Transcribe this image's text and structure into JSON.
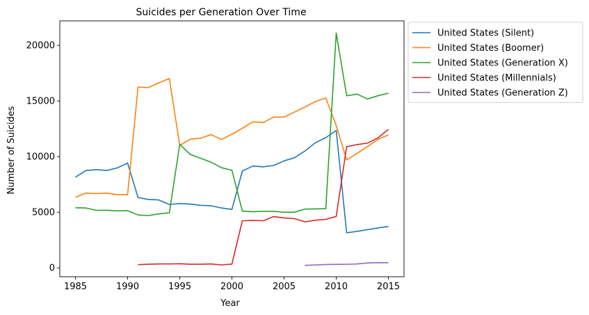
{
  "chart_data": {
    "type": "line",
    "title": "Suicides per Generation Over Time",
    "xlabel": "Year",
    "ylabel": "Number of Suicides",
    "xlim": [
      1983.5,
      2016.5
    ],
    "ylim": [
      -800,
      22200
    ],
    "xticks": [
      1985,
      1990,
      1995,
      2000,
      2005,
      2010,
      2015
    ],
    "yticks": [
      0,
      5000,
      10000,
      15000,
      20000
    ],
    "grid": false,
    "legend_position": "outside-top-right",
    "series": [
      {
        "name": "United States (Silent)",
        "color": "#1f77b4",
        "points": [
          [
            1985,
            8150
          ],
          [
            1986,
            8750
          ],
          [
            1987,
            8830
          ],
          [
            1988,
            8750
          ],
          [
            1989,
            8980
          ],
          [
            1990,
            9420
          ],
          [
            1991,
            6320
          ],
          [
            1992,
            6150
          ],
          [
            1993,
            6100
          ],
          [
            1994,
            5700
          ],
          [
            1995,
            5780
          ],
          [
            1996,
            5740
          ],
          [
            1997,
            5620
          ],
          [
            1998,
            5580
          ],
          [
            1999,
            5380
          ],
          [
            2000,
            5250
          ],
          [
            2001,
            8700
          ],
          [
            2002,
            9150
          ],
          [
            2003,
            9080
          ],
          [
            2004,
            9200
          ],
          [
            2005,
            9620
          ],
          [
            2006,
            9900
          ],
          [
            2007,
            10500
          ],
          [
            2008,
            11250
          ],
          [
            2009,
            11700
          ],
          [
            2010,
            12350
          ],
          [
            2011,
            3150
          ],
          [
            2012,
            3280
          ],
          [
            2013,
            3430
          ],
          [
            2014,
            3590
          ],
          [
            2015,
            3720
          ]
        ]
      },
      {
        "name": "United States (Boomer)",
        "color": "#ff7f0e",
        "points": [
          [
            1985,
            6350
          ],
          [
            1986,
            6720
          ],
          [
            1987,
            6680
          ],
          [
            1988,
            6720
          ],
          [
            1989,
            6580
          ],
          [
            1990,
            6580
          ],
          [
            1991,
            16250
          ],
          [
            1992,
            16200
          ],
          [
            1993,
            16630
          ],
          [
            1994,
            17020
          ],
          [
            1995,
            11000
          ],
          [
            1996,
            11560
          ],
          [
            1997,
            11650
          ],
          [
            1998,
            11980
          ],
          [
            1999,
            11530
          ],
          [
            2000,
            12010
          ],
          [
            2001,
            12550
          ],
          [
            2002,
            13120
          ],
          [
            2003,
            13060
          ],
          [
            2004,
            13550
          ],
          [
            2005,
            13550
          ],
          [
            2006,
            14000
          ],
          [
            2007,
            14450
          ],
          [
            2008,
            14950
          ],
          [
            2009,
            15270
          ],
          [
            2010,
            12780
          ],
          [
            2011,
            9700
          ],
          [
            2012,
            10300
          ],
          [
            2013,
            10900
          ],
          [
            2014,
            11550
          ],
          [
            2015,
            11950
          ]
        ]
      },
      {
        "name": "United States (Generation X)",
        "color": "#2ca02c",
        "points": [
          [
            1985,
            5400
          ],
          [
            1986,
            5380
          ],
          [
            1987,
            5170
          ],
          [
            1988,
            5180
          ],
          [
            1989,
            5120
          ],
          [
            1990,
            5150
          ],
          [
            1991,
            4750
          ],
          [
            1992,
            4700
          ],
          [
            1993,
            4850
          ],
          [
            1994,
            4950
          ],
          [
            1995,
            11100
          ],
          [
            1996,
            10200
          ],
          [
            1997,
            9850
          ],
          [
            1998,
            9500
          ],
          [
            1999,
            9000
          ],
          [
            2000,
            8770
          ],
          [
            2001,
            5100
          ],
          [
            2002,
            5050
          ],
          [
            2003,
            5080
          ],
          [
            2004,
            5080
          ],
          [
            2005,
            5000
          ],
          [
            2006,
            5000
          ],
          [
            2007,
            5280
          ],
          [
            2008,
            5300
          ],
          [
            2009,
            5320
          ],
          [
            2010,
            21100
          ],
          [
            2011,
            15470
          ],
          [
            2012,
            15620
          ],
          [
            2013,
            15180
          ],
          [
            2014,
            15470
          ],
          [
            2015,
            15700
          ]
        ]
      },
      {
        "name": "United States (Millennials)",
        "color": "#d62728",
        "points": [
          [
            1991,
            280
          ],
          [
            1992,
            330
          ],
          [
            1993,
            350
          ],
          [
            1994,
            350
          ],
          [
            1995,
            370
          ],
          [
            1996,
            330
          ],
          [
            1997,
            330
          ],
          [
            1998,
            350
          ],
          [
            1999,
            260
          ],
          [
            2000,
            340
          ],
          [
            2001,
            4230
          ],
          [
            2002,
            4270
          ],
          [
            2003,
            4230
          ],
          [
            2004,
            4610
          ],
          [
            2005,
            4490
          ],
          [
            2006,
            4420
          ],
          [
            2007,
            4140
          ],
          [
            2008,
            4280
          ],
          [
            2009,
            4360
          ],
          [
            2010,
            4620
          ],
          [
            2011,
            10900
          ],
          [
            2012,
            11080
          ],
          [
            2013,
            11210
          ],
          [
            2014,
            11680
          ],
          [
            2015,
            12450
          ]
        ]
      },
      {
        "name": "United States (Generation Z)",
        "color": "#9467bd",
        "points": [
          [
            2007,
            220
          ],
          [
            2008,
            260
          ],
          [
            2009,
            300
          ],
          [
            2010,
            310
          ],
          [
            2011,
            320
          ],
          [
            2012,
            350
          ],
          [
            2013,
            440
          ],
          [
            2014,
            470
          ],
          [
            2015,
            460
          ]
        ]
      }
    ]
  }
}
